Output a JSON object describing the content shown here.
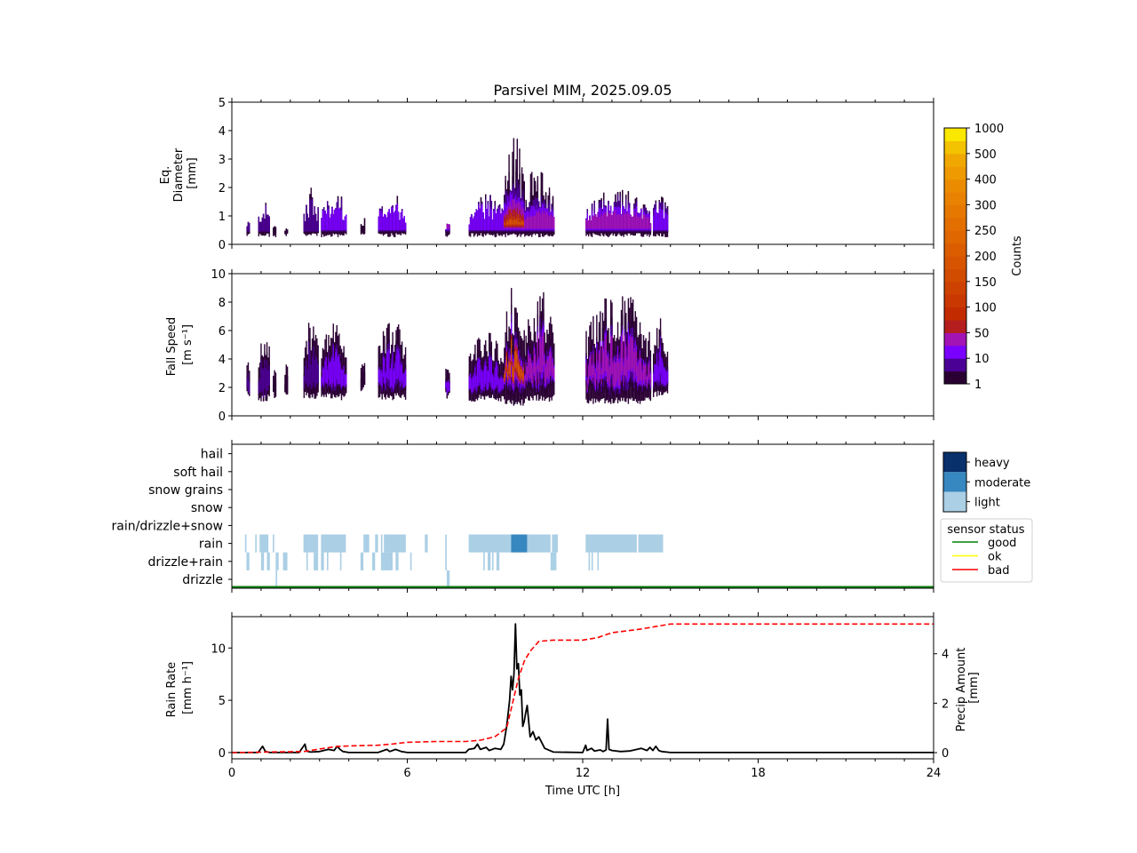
{
  "chart_data": [
    {
      "type": "heatmap",
      "panel": "diameter",
      "title": "Parsivel MIM, 2025.09.05",
      "xlabel": "",
      "ylabel": [
        "Eq.",
        "Diameter",
        "[mm]"
      ],
      "xlim": [
        0,
        24
      ],
      "ylim": [
        0,
        5
      ],
      "yticks": [
        0,
        1,
        2,
        3,
        4,
        5
      ],
      "xticks_major": [
        0,
        6,
        12,
        18,
        24
      ],
      "xticks_minor_step": 1,
      "precip_events": [
        {
          "start": 0.5,
          "end": 0.6,
          "top": 0.9,
          "core": 0.6,
          "level": 2
        },
        {
          "start": 0.9,
          "end": 1.3,
          "top": 1.5,
          "core": 0.8,
          "level": 2
        },
        {
          "start": 1.4,
          "end": 1.5,
          "top": 0.8,
          "core": 0.5,
          "level": 1
        },
        {
          "start": 1.8,
          "end": 1.9,
          "top": 0.7,
          "core": 0.5,
          "level": 1
        },
        {
          "start": 2.45,
          "end": 2.95,
          "top": 2.0,
          "core": 0.9,
          "level": 2
        },
        {
          "start": 3.05,
          "end": 3.9,
          "top": 2.0,
          "core": 1.0,
          "level": 3
        },
        {
          "start": 4.4,
          "end": 4.55,
          "top": 1.1,
          "core": 0.6,
          "level": 1
        },
        {
          "start": 5.0,
          "end": 5.95,
          "top": 1.8,
          "core": 1.0,
          "level": 3
        },
        {
          "start": 7.3,
          "end": 7.45,
          "top": 0.8,
          "core": 0.6,
          "level": 4
        },
        {
          "start": 8.1,
          "end": 9.3,
          "top": 1.8,
          "core": 1.0,
          "level": 3
        },
        {
          "start": 9.3,
          "end": 10.0,
          "top": 4.0,
          "core": 1.6,
          "level": 7
        },
        {
          "start": 10.0,
          "end": 11.0,
          "top": 3.0,
          "core": 1.0,
          "level": 4
        },
        {
          "start": 12.1,
          "end": 14.3,
          "top": 2.0,
          "core": 1.0,
          "level": 4
        },
        {
          "start": 14.4,
          "end": 14.9,
          "top": 1.9,
          "core": 1.0,
          "level": 3
        }
      ],
      "colorbar": {
        "label": "Counts",
        "tick_labels": [
          "1",
          "10",
          "50",
          "100",
          "150",
          "200",
          "250",
          "300",
          "400",
          "500",
          "1000"
        ],
        "colors": [
          "#2a0033",
          "#4b0095",
          "#7a00ff",
          "#a214b4",
          "#b51e1e",
          "#c22b00",
          "#c83800",
          "#cd4200",
          "#d24c00",
          "#d75500",
          "#dc5d00",
          "#e06600",
          "#e36f00",
          "#e67800",
          "#e98200",
          "#eb8c00",
          "#ee9a00",
          "#f0a800",
          "#f3c200",
          "#fbe800"
        ]
      }
    },
    {
      "type": "heatmap",
      "panel": "fall-speed",
      "xlabel": "",
      "ylabel": [
        "Fall Speed",
        "[m s⁻¹]"
      ],
      "xlim": [
        0,
        24
      ],
      "ylim": [
        0,
        10
      ],
      "yticks": [
        0,
        2,
        4,
        6,
        8,
        10
      ],
      "precip_events": [
        {
          "start": 0.5,
          "end": 0.6,
          "bottom": 1.3,
          "top": 4.5,
          "level": 2
        },
        {
          "start": 0.9,
          "end": 1.3,
          "bottom": 1.0,
          "top": 6.0,
          "level": 2
        },
        {
          "start": 1.4,
          "end": 1.5,
          "bottom": 1.2,
          "top": 3.5,
          "level": 1
        },
        {
          "start": 1.8,
          "end": 1.9,
          "bottom": 1.3,
          "top": 4.0,
          "level": 1
        },
        {
          "start": 2.45,
          "end": 2.95,
          "bottom": 1.2,
          "top": 7.0,
          "level": 2
        },
        {
          "start": 3.05,
          "end": 3.9,
          "bottom": 1.1,
          "top": 7.0,
          "level": 3
        },
        {
          "start": 4.4,
          "end": 4.55,
          "bottom": 1.7,
          "top": 4.5,
          "level": 1
        },
        {
          "start": 5.0,
          "end": 5.95,
          "bottom": 1.1,
          "top": 7.0,
          "level": 3
        },
        {
          "start": 7.3,
          "end": 7.45,
          "bottom": 1.2,
          "top": 4.0,
          "level": 3
        },
        {
          "start": 8.1,
          "end": 9.3,
          "bottom": 1.0,
          "top": 6.0,
          "level": 3
        },
        {
          "start": 9.3,
          "end": 10.0,
          "bottom": 0.7,
          "top": 10.0,
          "level": 7
        },
        {
          "start": 10.0,
          "end": 11.0,
          "bottom": 1.0,
          "top": 9.0,
          "level": 4
        },
        {
          "start": 12.1,
          "end": 14.3,
          "bottom": 0.8,
          "top": 9.0,
          "level": 4
        },
        {
          "start": 14.4,
          "end": 14.9,
          "bottom": 1.3,
          "top": 7.5,
          "level": 3
        }
      ]
    },
    {
      "type": "heatmap",
      "panel": "precip-type",
      "categories": [
        "drizzle",
        "drizzle+rain",
        "rain",
        "rain/drizzle+snow",
        "snow",
        "snow grains",
        "soft hail",
        "hail"
      ],
      "xlim": [
        0,
        24
      ],
      "intensity_legend": [
        {
          "label": "heavy",
          "color": "#08306b"
        },
        {
          "label": "moderate",
          "color": "#3787c0"
        },
        {
          "label": "light",
          "color": "#abcfe5"
        }
      ],
      "segments": [
        {
          "category": "rain",
          "start": 0.45,
          "end": 0.5,
          "intensity": "light"
        },
        {
          "category": "rain",
          "start": 0.8,
          "end": 0.85,
          "intensity": "light"
        },
        {
          "category": "rain",
          "start": 0.95,
          "end": 1.25,
          "intensity": "light"
        },
        {
          "category": "rain",
          "start": 1.4,
          "end": 1.45,
          "intensity": "light"
        },
        {
          "category": "rain",
          "start": 2.45,
          "end": 2.95,
          "intensity": "light"
        },
        {
          "category": "rain",
          "start": 3.05,
          "end": 3.9,
          "intensity": "light"
        },
        {
          "category": "rain",
          "start": 4.5,
          "end": 4.7,
          "intensity": "light"
        },
        {
          "category": "rain",
          "start": 4.9,
          "end": 5.0,
          "intensity": "light"
        },
        {
          "category": "rain",
          "start": 5.1,
          "end": 5.15,
          "intensity": "light"
        },
        {
          "category": "rain",
          "start": 5.2,
          "end": 5.95,
          "intensity": "light"
        },
        {
          "category": "rain",
          "start": 6.6,
          "end": 6.7,
          "intensity": "light"
        },
        {
          "category": "rain",
          "start": 7.3,
          "end": 7.35,
          "intensity": "light"
        },
        {
          "category": "rain",
          "start": 8.1,
          "end": 9.55,
          "intensity": "light"
        },
        {
          "category": "rain",
          "start": 9.55,
          "end": 10.1,
          "intensity": "moderate"
        },
        {
          "category": "rain",
          "start": 10.1,
          "end": 10.9,
          "intensity": "light"
        },
        {
          "category": "rain",
          "start": 10.95,
          "end": 11.15,
          "intensity": "light"
        },
        {
          "category": "rain",
          "start": 12.1,
          "end": 13.85,
          "intensity": "light"
        },
        {
          "category": "rain",
          "start": 13.9,
          "end": 14.75,
          "intensity": "light"
        },
        {
          "category": "drizzle+rain",
          "start": 0.5,
          "end": 0.6,
          "intensity": "light"
        },
        {
          "category": "drizzle+rain",
          "start": 1.0,
          "end": 1.1,
          "intensity": "light"
        },
        {
          "category": "drizzle+rain",
          "start": 1.2,
          "end": 1.3,
          "intensity": "light"
        },
        {
          "category": "drizzle+rain",
          "start": 1.5,
          "end": 1.6,
          "intensity": "light"
        },
        {
          "category": "drizzle+rain",
          "start": 1.75,
          "end": 1.9,
          "intensity": "light"
        },
        {
          "category": "drizzle+rain",
          "start": 2.55,
          "end": 2.6,
          "intensity": "light"
        },
        {
          "category": "drizzle+rain",
          "start": 2.8,
          "end": 2.95,
          "intensity": "light"
        },
        {
          "category": "drizzle+rain",
          "start": 3.05,
          "end": 3.15,
          "intensity": "light"
        },
        {
          "category": "drizzle+rain",
          "start": 3.25,
          "end": 3.3,
          "intensity": "light"
        },
        {
          "category": "drizzle+rain",
          "start": 3.7,
          "end": 3.75,
          "intensity": "light"
        },
        {
          "category": "drizzle+rain",
          "start": 4.4,
          "end": 4.5,
          "intensity": "light"
        },
        {
          "category": "drizzle+rain",
          "start": 4.8,
          "end": 4.9,
          "intensity": "light"
        },
        {
          "category": "drizzle+rain",
          "start": 5.1,
          "end": 5.5,
          "intensity": "light"
        },
        {
          "category": "drizzle+rain",
          "start": 5.6,
          "end": 5.7,
          "intensity": "light"
        },
        {
          "category": "drizzle+rain",
          "start": 6.1,
          "end": 6.15,
          "intensity": "light"
        },
        {
          "category": "drizzle+rain",
          "start": 7.3,
          "end": 7.35,
          "intensity": "light"
        },
        {
          "category": "drizzle+rain",
          "start": 8.6,
          "end": 8.65,
          "intensity": "light"
        },
        {
          "category": "drizzle+rain",
          "start": 8.75,
          "end": 8.85,
          "intensity": "light"
        },
        {
          "category": "drizzle+rain",
          "start": 8.9,
          "end": 8.95,
          "intensity": "light"
        },
        {
          "category": "drizzle+rain",
          "start": 9.05,
          "end": 9.15,
          "intensity": "light"
        },
        {
          "category": "drizzle+rain",
          "start": 10.9,
          "end": 11.1,
          "intensity": "light"
        },
        {
          "category": "drizzle+rain",
          "start": 12.2,
          "end": 12.25,
          "intensity": "light"
        },
        {
          "category": "drizzle+rain",
          "start": 12.3,
          "end": 12.35,
          "intensity": "light"
        },
        {
          "category": "drizzle+rain",
          "start": 12.5,
          "end": 12.55,
          "intensity": "light"
        },
        {
          "category": "drizzle",
          "start": 1.5,
          "end": 1.55,
          "intensity": "light"
        },
        {
          "category": "drizzle",
          "start": 7.35,
          "end": 7.45,
          "intensity": "light"
        }
      ],
      "sensor_status": {
        "title": "sensor status",
        "entries": [
          {
            "label": "good",
            "color": "#008000"
          },
          {
            "label": "ok",
            "color": "#ffff00"
          },
          {
            "label": "bad",
            "color": "#ff0000"
          }
        ],
        "timeline": [
          {
            "start": 0,
            "end": 24,
            "status": "good"
          }
        ]
      }
    },
    {
      "type": "line",
      "panel": "rain-rate",
      "xlabel": "Time UTC [h]",
      "ylabel": [
        "Rain Rate",
        "[mm h⁻¹]"
      ],
      "ylabel_right": [
        "Precip Amount",
        "[mm]"
      ],
      "xlim": [
        0,
        24
      ],
      "ylim": [
        -0.6,
        13
      ],
      "ylim_right": [
        -0.25,
        5.5
      ],
      "xticks": [
        0,
        6,
        12,
        18,
        24
      ],
      "yticks": [
        0,
        5,
        10
      ],
      "yticks_right": [
        0,
        2,
        4
      ],
      "series": [
        {
          "name": "Rain Rate",
          "axis": "left",
          "style": "solid",
          "color": "#000000",
          "x": [
            0,
            0.9,
            1.05,
            1.15,
            1.3,
            2.3,
            2.5,
            2.55,
            2.6,
            2.7,
            3.0,
            3.3,
            3.5,
            3.6,
            3.7,
            3.8,
            4.0,
            5.0,
            5.3,
            5.4,
            5.6,
            5.8,
            6.0,
            7.0,
            8.0,
            8.1,
            8.3,
            8.4,
            8.5,
            8.7,
            8.8,
            9.0,
            9.2,
            9.3,
            9.4,
            9.5,
            9.55,
            9.6,
            9.65,
            9.7,
            9.75,
            9.8,
            9.85,
            9.9,
            9.95,
            10.0,
            10.05,
            10.1,
            10.2,
            10.3,
            10.4,
            10.5,
            10.7,
            11.0,
            12.0,
            12.1,
            12.15,
            12.3,
            12.4,
            12.6,
            12.7,
            12.8,
            12.85,
            12.9,
            13.0,
            13.3,
            13.6,
            14.0,
            14.2,
            14.3,
            14.4,
            14.5,
            14.6,
            14.7,
            15.0,
            24
          ],
          "y": [
            0,
            0,
            0.6,
            0.1,
            0,
            0,
            0.8,
            0.2,
            0.1,
            0.05,
            0.1,
            0.3,
            0.2,
            0.6,
            0.3,
            0.1,
            0,
            0,
            0.3,
            0.1,
            0.3,
            0.1,
            0,
            0,
            0,
            0.3,
            0.4,
            0.8,
            0.3,
            0.5,
            0.2,
            0.4,
            0.3,
            0.8,
            2.5,
            5.0,
            7.3,
            6.0,
            7.5,
            12.3,
            8.0,
            8.5,
            5.5,
            6.0,
            2.5,
            3.0,
            3.8,
            4.5,
            1.5,
            2.0,
            1.2,
            1.5,
            0.4,
            0.05,
            0,
            0.7,
            0.2,
            0.4,
            0.15,
            0.25,
            0.1,
            0.25,
            3.2,
            0.3,
            0.2,
            0.1,
            0.15,
            0.4,
            0.2,
            0.5,
            0.2,
            0.6,
            0.2,
            0.1,
            0,
            0
          ]
        },
        {
          "name": "Precip Amount",
          "axis": "right",
          "style": "dashed",
          "color": "#ff0000",
          "x": [
            0,
            1.0,
            2.5,
            3.0,
            3.6,
            4.0,
            5.0,
            5.5,
            6.0,
            7.0,
            8.0,
            8.5,
            9.0,
            9.4,
            9.6,
            9.8,
            10.0,
            10.2,
            10.5,
            11.0,
            12.0,
            12.5,
            13.0,
            14.0,
            14.5,
            15.0,
            24
          ],
          "y": [
            0,
            0.02,
            0.05,
            0.15,
            0.25,
            0.27,
            0.3,
            0.35,
            0.42,
            0.45,
            0.45,
            0.5,
            0.65,
            1.0,
            2.0,
            3.0,
            3.7,
            4.1,
            4.5,
            4.55,
            4.55,
            4.65,
            4.85,
            5.0,
            5.1,
            5.2,
            5.2
          ]
        }
      ]
    }
  ]
}
